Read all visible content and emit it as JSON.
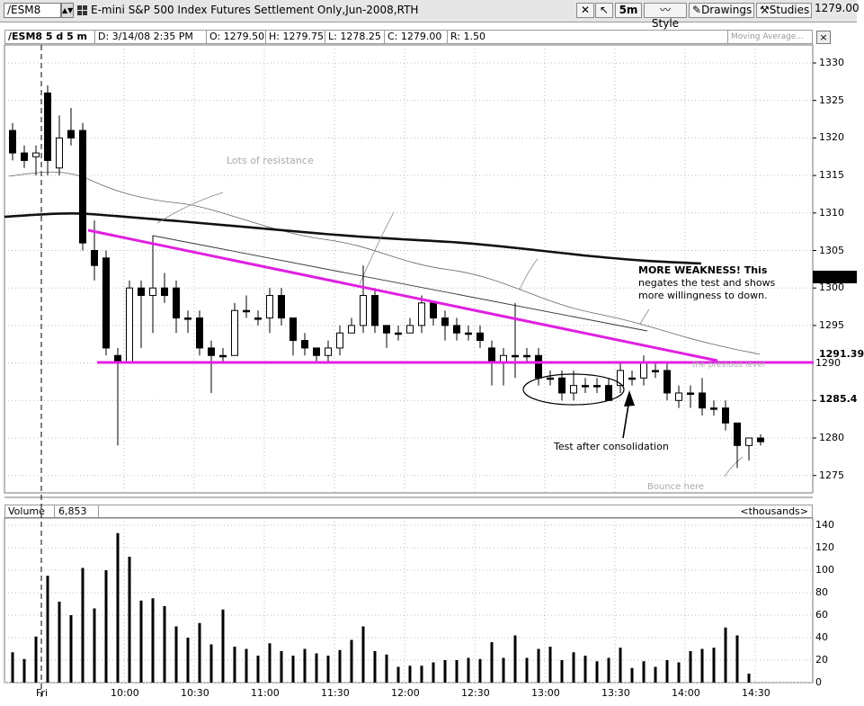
{
  "toolbar": {
    "symbol": "/ESM8",
    "title": "E-mini S&P 500 Index Futures Settlement Only,Jun-2008,RTH",
    "interval": "5m",
    "style_label": "Style",
    "drawings_label": "Drawings",
    "studies_label": "Studies",
    "last_price": "1279.00",
    "icons": [
      "grid-icon",
      "crosshair-icon",
      "cursor-icon",
      "style-icon",
      "drawings-icon",
      "studies-icon"
    ]
  },
  "infobar": {
    "symbol_interval": "/ESM8 5 d 5 m",
    "date": "D: 3/14/08 2:35 PM",
    "open": "O: 1279.50",
    "high": "H: 1279.75",
    "low": "L: 1278.25",
    "close": "C: 1279.00",
    "range": "R: 1.50",
    "study_box": "Moving Average...",
    "close_label": "×"
  },
  "price_axis": {
    "labels": [
      "1330",
      "1325",
      "1320",
      "1315",
      "1310",
      "1305",
      "1300",
      "1295",
      "1290",
      "1285",
      "1280",
      "1275"
    ],
    "marker_1291": "1291.39",
    "marker_1290": "1290",
    "marker_1285": "1285.4"
  },
  "time_axis": {
    "labels": [
      "Fri",
      "10:00",
      "10:30",
      "11:00",
      "11:30",
      "12:00",
      "12:30",
      "13:00",
      "13:30",
      "14:00",
      "14:30"
    ]
  },
  "volume": {
    "label": "Volume",
    "value": "6,853",
    "unit_label": "<thousands>",
    "axis_labels": [
      "140",
      "120",
      "100",
      "80",
      "60",
      "40",
      "20",
      "0"
    ]
  },
  "annotations": {
    "faint_top": "Lots of resistance",
    "weakness_line1": "MORE WEAKNESS!  This",
    "weakness_line2": "negates the test and shows",
    "weakness_line3": "more willingness to down.",
    "test_label": "Test after consolidation",
    "faint_mid": "the previous level",
    "faint_bottom": "Bounce here"
  },
  "colors": {
    "magenta": "#e020e0",
    "panel_bg": "#ffffff",
    "toolbar_bg": "#e6e6e6"
  }
}
